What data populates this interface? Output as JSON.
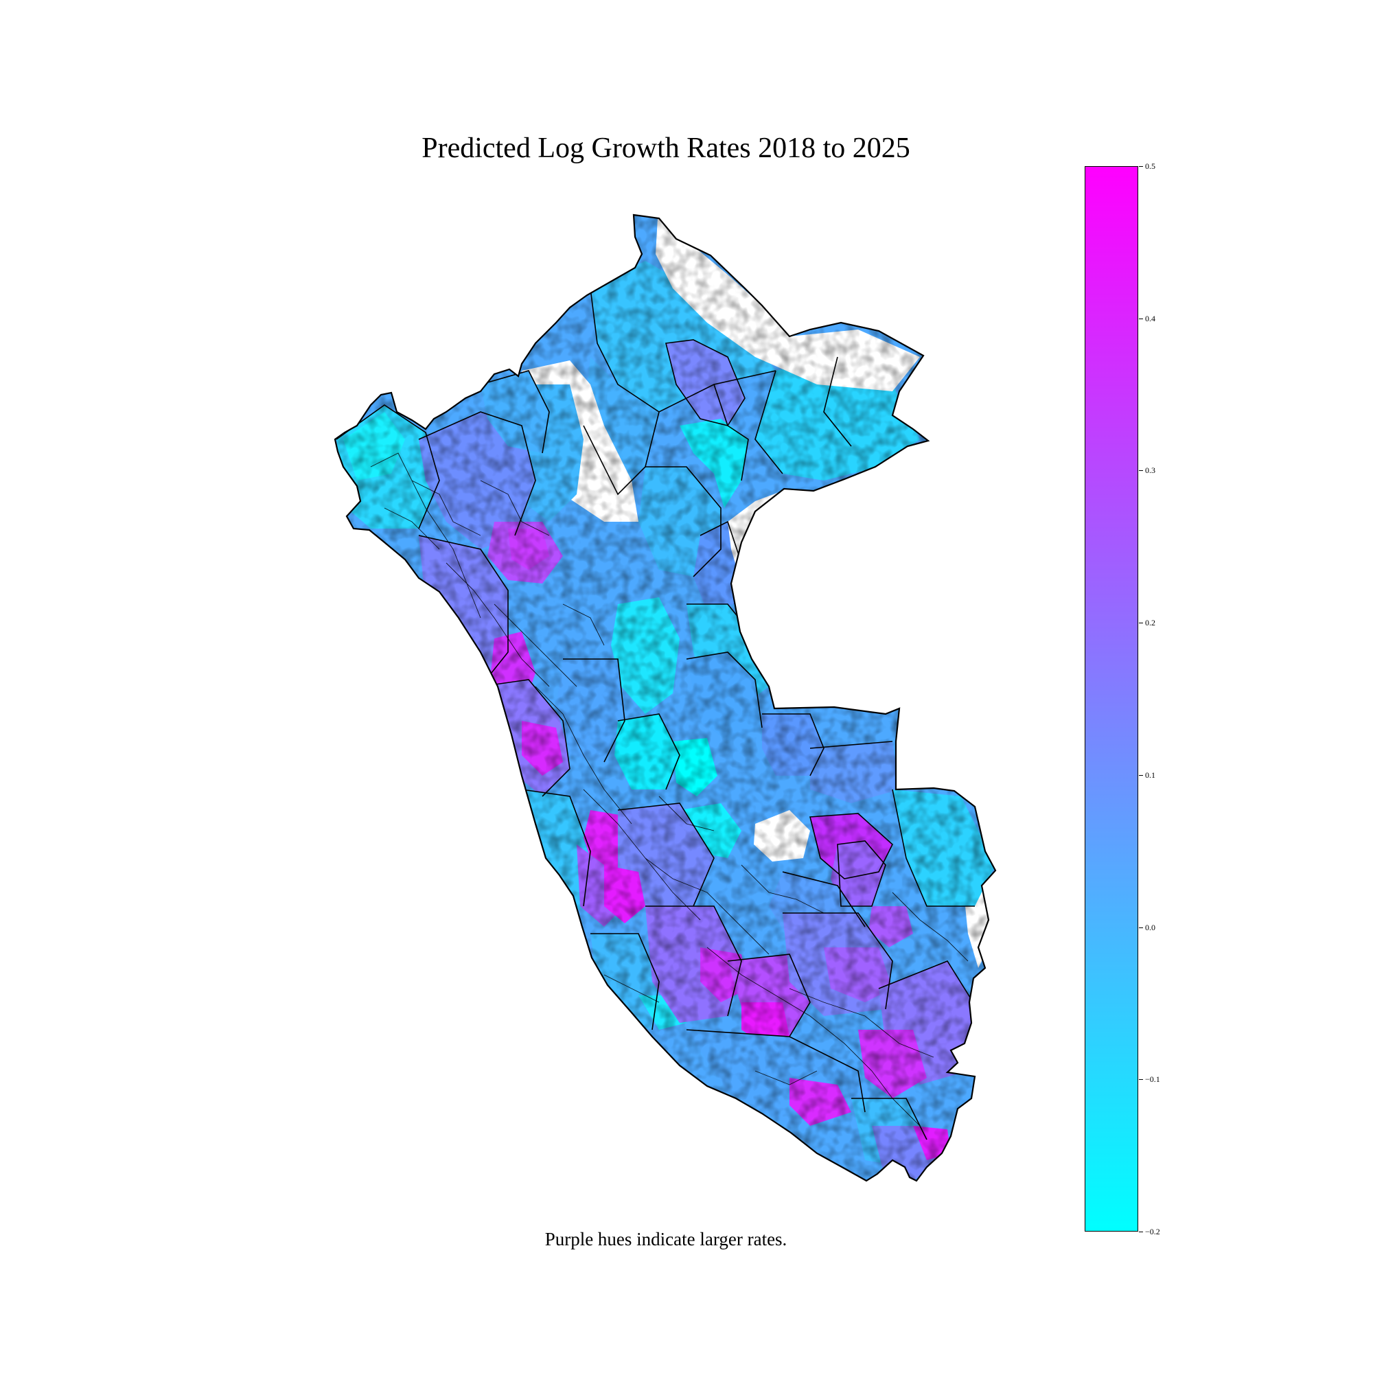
{
  "figure": {
    "title": "Predicted Log Growth Rates 2018 to 2025",
    "caption": "Purple hues indicate larger rates."
  },
  "colorbar": {
    "colormap": "cool",
    "color_min": "#00ffff",
    "color_max": "#ff00ff",
    "range": [
      -0.2,
      0.5
    ],
    "ticks": [
      {
        "value": 0.5,
        "label": "0.5"
      },
      {
        "value": 0.4,
        "label": "0.4"
      },
      {
        "value": 0.3,
        "label": "0.3"
      },
      {
        "value": 0.2,
        "label": "0.2"
      },
      {
        "value": 0.1,
        "label": "0.1"
      },
      {
        "value": 0.0,
        "label": "0.0"
      },
      {
        "value": -0.1,
        "label": "−0.1"
      },
      {
        "value": -0.2,
        "label": "−0.2"
      }
    ]
  },
  "map": {
    "region": "Peru",
    "boundary_color": "#000000",
    "no_data_color": "#ffffff"
  }
}
